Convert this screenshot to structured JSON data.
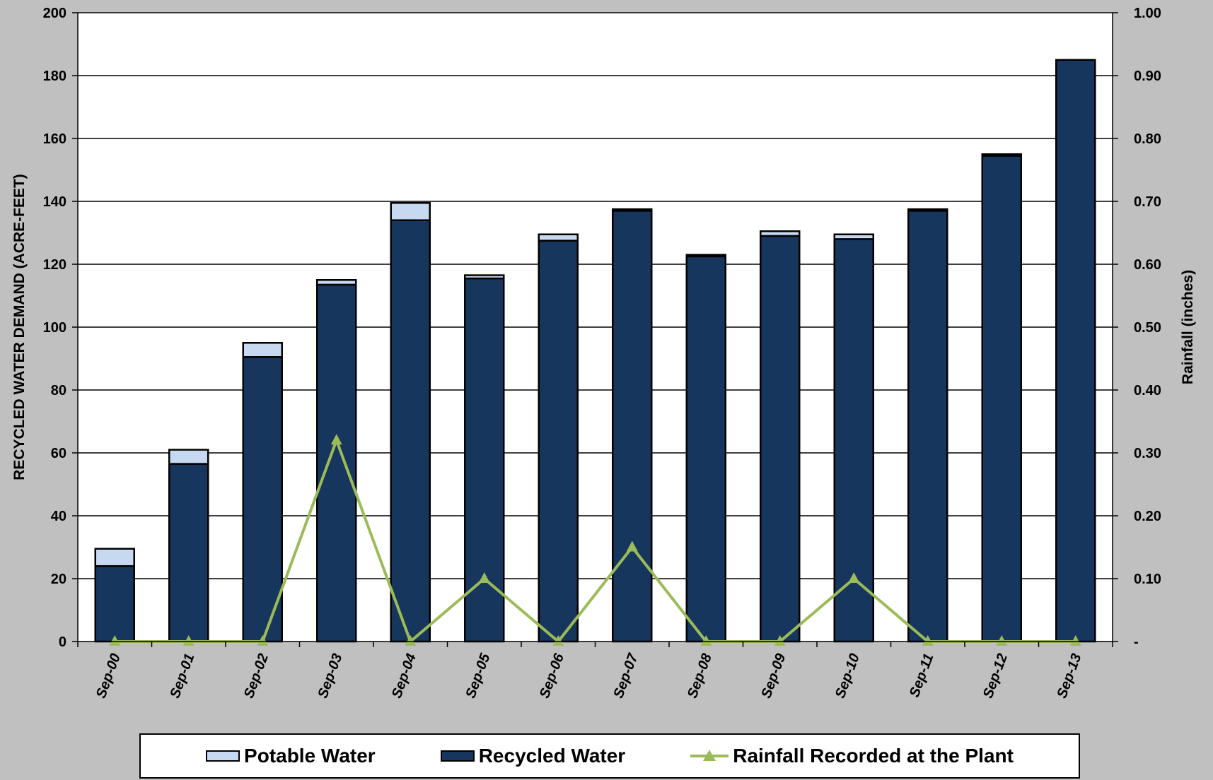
{
  "chart_data": {
    "type": "bar",
    "categories": [
      "Sep-00",
      "Sep-01",
      "Sep-02",
      "Sep-03",
      "Sep-04",
      "Sep-05",
      "Sep-06",
      "Sep-07",
      "Sep-08",
      "Sep-09",
      "Sep-10",
      "Sep-11",
      "Sep-12",
      "Sep-13"
    ],
    "series": [
      {
        "name": "Recycled Water",
        "type": "bar",
        "stack": "demand",
        "axis": "left",
        "color": "#17365d",
        "values": [
          24,
          56.5,
          90.5,
          113.5,
          134,
          115.5,
          127.5,
          137,
          122.5,
          129,
          128,
          137,
          154.5,
          185
        ]
      },
      {
        "name": "Potable Water",
        "type": "bar",
        "stack": "demand",
        "axis": "left",
        "color": "#c6d9f1",
        "values": [
          5.5,
          4.5,
          4.5,
          1.5,
          5.5,
          1,
          2,
          0.5,
          0.5,
          1.5,
          1.5,
          0.5,
          0.5,
          0
        ]
      },
      {
        "name": "Rainfall Recorded at the Plant",
        "type": "line",
        "axis": "right",
        "color": "#9bbb59",
        "marker": "triangle",
        "values": [
          0,
          0,
          0,
          0.32,
          0,
          0.1,
          0,
          0.15,
          0,
          0,
          0.1,
          0,
          0,
          0
        ]
      }
    ],
    "ylabel": "RECYCLED WATER DEMAND (ACRE-FEET)",
    "y2label": "Rainfall (inches)",
    "ylim": [
      0,
      200
    ],
    "y2lim": [
      0,
      1.0
    ],
    "yticks": [
      "0",
      "20",
      "40",
      "60",
      "80",
      "100",
      "120",
      "140",
      "160",
      "180",
      "200"
    ],
    "y2ticks": [
      "-",
      "0.10",
      "0.20",
      "0.30",
      "0.40",
      "0.50",
      "0.60",
      "0.70",
      "0.80",
      "0.90",
      "1.00"
    ],
    "grid": true,
    "legend_position": "bottom"
  },
  "legend": {
    "potable": "Potable Water",
    "recycled": "Recycled Water",
    "rainfall": "Rainfall Recorded at the Plant"
  },
  "colors": {
    "recycled": "#17365d",
    "potable": "#c6d9f1",
    "rainfall": "#9bbb59",
    "background": "#c0c0c0",
    "plot": "#ffffff"
  }
}
